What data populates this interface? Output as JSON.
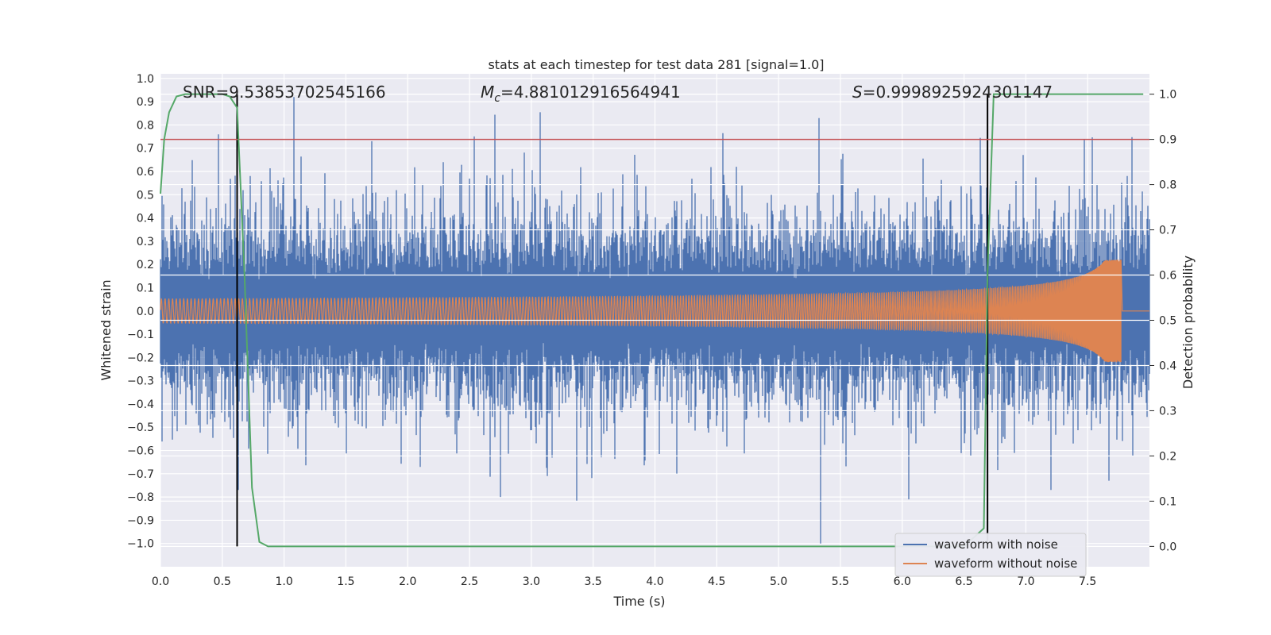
{
  "chart_data": {
    "type": "line",
    "title": "stats at each timestep for test data 281 [signal=1.0]",
    "xlabel": "Time (s)",
    "ylabel_left": "Whitened strain",
    "ylabel_right": "Detection probability",
    "xlim": [
      0.0,
      8.0
    ],
    "ylim_left": [
      -1.1,
      1.02
    ],
    "ylim_right": [
      -0.045,
      1.045
    ],
    "x_ticks": [
      "0.0",
      "0.5",
      "1.0",
      "1.5",
      "2.0",
      "2.5",
      "3.0",
      "3.5",
      "4.0",
      "4.5",
      "5.0",
      "5.5",
      "6.0",
      "6.5",
      "7.0",
      "7.5"
    ],
    "y_ticks_left": [
      "1.0",
      "0.9",
      "0.8",
      "0.7",
      "0.6",
      "0.5",
      "0.4",
      "0.3",
      "0.2",
      "0.1",
      "0.0",
      "−0.1",
      "−0.2",
      "−0.3",
      "−0.4",
      "−0.5",
      "−0.6",
      "−0.7",
      "−0.8",
      "−0.9",
      "−1.0"
    ],
    "y_ticks_right": [
      "1.0",
      "0.9",
      "0.8",
      "0.7",
      "0.6",
      "0.5",
      "0.4",
      "0.3",
      "0.2",
      "0.1",
      "0.0"
    ],
    "annotations": {
      "snr_label": "SNR=9.53853702545166",
      "mc_label_sym": "M",
      "mc_label_sub": "c",
      "mc_label_val": "=4.881012916564941",
      "s_label_sym": "S",
      "s_label_val": "=0.9998925924301147"
    },
    "threshold_right": 0.9,
    "vertical_markers_x": [
      0.62,
      6.69
    ],
    "series": [
      {
        "name": "waveform with noise",
        "axis": "left",
        "color": "#4c72b0",
        "description_envelope": {
          "typical_amplitude": 0.35,
          "spikes": [
            {
              "x": 1.08,
              "y": 0.92
            },
            {
              "x": 5.33,
              "y": 0.83
            },
            {
              "x": 5.34,
              "y": -1.0
            },
            {
              "x": 0.47,
              "y": 0.76
            },
            {
              "x": 1.71,
              "y": 0.73
            },
            {
              "x": 7.47,
              "y": 0.74
            },
            {
              "x": 3.37,
              "y": -0.82
            },
            {
              "x": 2.75,
              "y": -0.8
            },
            {
              "x": 6.05,
              "y": -0.81
            },
            {
              "x": 0.63,
              "y": -0.77
            },
            {
              "x": 7.67,
              "y": -0.73
            },
            {
              "x": 7.2,
              "y": -0.77
            }
          ]
        }
      },
      {
        "name": "waveform without noise",
        "axis": "left",
        "color": "#dd8452",
        "chirp": {
          "start_amp": 0.02,
          "end_amp": 0.22,
          "merger_x": 7.77,
          "start_freq_hz": 33,
          "end_freq_hz": 900
        }
      },
      {
        "name": "detection probability",
        "axis": "right",
        "color": "#55a868",
        "x": [
          0.0,
          0.03,
          0.07,
          0.13,
          0.2,
          0.3,
          0.4,
          0.5,
          0.56,
          0.62,
          0.68,
          0.74,
          0.8,
          0.87,
          1.5,
          2.5,
          3.5,
          4.5,
          5.5,
          6.5,
          6.66,
          6.69,
          6.74,
          6.8,
          7.0,
          7.5,
          7.95
        ],
        "y": [
          0.78,
          0.9,
          0.96,
          0.995,
          1.0,
          1.0,
          1.0,
          1.0,
          0.995,
          0.97,
          0.6,
          0.13,
          0.01,
          0.0,
          0.0,
          0.0,
          0.0,
          0.0,
          0.0,
          0.0,
          0.04,
          0.6,
          1.0,
          1.0,
          1.0,
          1.0,
          1.0
        ]
      },
      {
        "name": "threshold",
        "axis": "right",
        "color": "#c44e52",
        "x": [
          0.0,
          8.0
        ],
        "y": [
          0.9,
          0.9
        ]
      }
    ],
    "legend": {
      "location": "lower-right",
      "entries": [
        {
          "label": "waveform with noise",
          "color": "#4c72b0"
        },
        {
          "label": "waveform without noise",
          "color": "#dd8452"
        }
      ]
    }
  }
}
